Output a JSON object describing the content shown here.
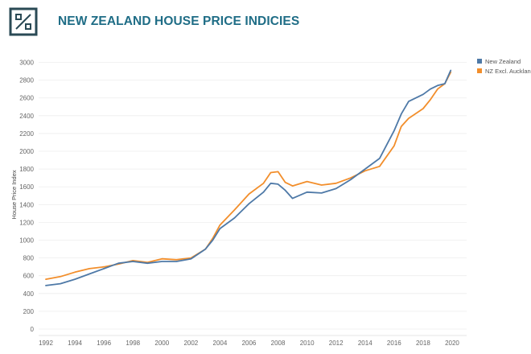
{
  "header": {
    "title": "NEW ZEALAND HOUSE PRICE INDICIES",
    "logo_icon": "percent-box-icon"
  },
  "colors": {
    "title": "#1f6d86",
    "series_new_zealand": "#4e79a7",
    "series_nz_excl_auckland": "#f28e2b",
    "grid": "#eeeeee"
  },
  "chart_data": {
    "type": "line",
    "title": "",
    "xlabel": "",
    "ylabel": "House Price Index",
    "xlim": [
      1991.5,
      2021.0
    ],
    "ylim": [
      0,
      3050
    ],
    "yticks": [
      0,
      200,
      400,
      600,
      800,
      1000,
      1200,
      1400,
      1600,
      1800,
      2000,
      2200,
      2400,
      2600,
      2800,
      3000
    ],
    "xticks": [
      1992,
      1994,
      1996,
      1998,
      2000,
      2002,
      2004,
      2006,
      2008,
      2010,
      2012,
      2014,
      2016,
      2018,
      2020
    ],
    "legend_position": "top-right",
    "series": [
      {
        "name": "New Zealand",
        "x": [
          1992.0,
          1993.0,
          1994.0,
          1995.0,
          1996.0,
          1997.0,
          1998.0,
          1999.0,
          2000.0,
          2001.0,
          2002.0,
          2003.0,
          2003.5,
          2004.0,
          2005.0,
          2006.0,
          2007.0,
          2007.5,
          2008.0,
          2008.5,
          2009.0,
          2010.0,
          2011.0,
          2012.0,
          2013.0,
          2014.0,
          2015.0,
          2016.0,
          2016.5,
          2017.0,
          2018.0,
          2018.5,
          2019.0,
          2019.5,
          2019.9
        ],
        "values": [
          490,
          510,
          560,
          620,
          680,
          740,
          760,
          740,
          760,
          760,
          790,
          900,
          1000,
          1130,
          1250,
          1410,
          1540,
          1640,
          1630,
          1560,
          1470,
          1540,
          1530,
          1580,
          1680,
          1800,
          1920,
          2230,
          2420,
          2560,
          2640,
          2700,
          2740,
          2760,
          2910
        ]
      },
      {
        "name": "NZ Excl. Auckland",
        "x": [
          1992.0,
          1993.0,
          1994.0,
          1995.0,
          1996.0,
          1997.0,
          1998.0,
          1999.0,
          2000.0,
          2001.0,
          2002.0,
          2003.0,
          2003.5,
          2004.0,
          2005.0,
          2006.0,
          2007.0,
          2007.5,
          2008.0,
          2008.5,
          2009.0,
          2010.0,
          2011.0,
          2012.0,
          2013.0,
          2014.0,
          2015.0,
          2016.0,
          2016.5,
          2017.0,
          2018.0,
          2018.5,
          2019.0,
          2019.5,
          2019.9
        ],
        "values": [
          560,
          590,
          640,
          680,
          700,
          730,
          770,
          750,
          790,
          780,
          800,
          900,
          1020,
          1170,
          1340,
          1520,
          1640,
          1760,
          1770,
          1650,
          1610,
          1660,
          1620,
          1640,
          1700,
          1780,
          1830,
          2060,
          2280,
          2370,
          2480,
          2580,
          2700,
          2760,
          2890
        ]
      }
    ]
  }
}
